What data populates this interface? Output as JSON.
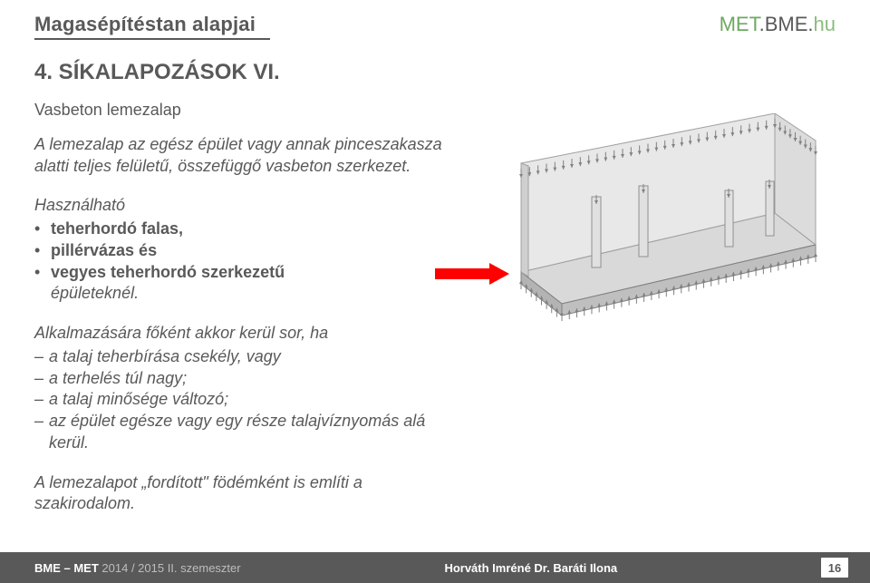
{
  "header": {
    "title": "Magasépítéstan alapjai",
    "logo_met": "MET",
    "logo_bme": ".BME.",
    "logo_hu": "hu"
  },
  "section_title": "4. SÍKALAPOZÁSOK VI.",
  "content": {
    "subheading": "Vasbeton lemezalap",
    "para1": "A lemezalap az egész épület vagy annak pinceszakasza alatti teljes felületű, összefüggő vasbeton szerkezet.",
    "lead1": "Használható",
    "bullets": [
      "teherhordó falas,",
      "pillérvázas és",
      "vegyes teherhordó szerkezetű"
    ],
    "bullets_tail": "épületeknél.",
    "lead2": "Alkalmazására főként akkor kerül sor, ha",
    "dashes": [
      "a talaj teherbírása csekély, vagy",
      "a terhelés túl nagy;",
      "a talaj minősége változó;",
      "az épület egésze vagy egy része talajvíznyomás alá kerül."
    ],
    "para2": "A lemezalapot „fordított\" födémként is említi a szakirodalom."
  },
  "diagram": {
    "slab_fill": "#d9d9d9",
    "slab_stroke": "#808080",
    "wall_fill": "#e6e6e6",
    "arrow_color": "#808080",
    "red_arrow_color": "#ff0000"
  },
  "footer": {
    "left_strong": "BME – MET ",
    "left_light": "2014 / 2015 II. szemeszter",
    "center": "Horváth Imréné Dr. Baráti Ilona",
    "page": "16"
  }
}
